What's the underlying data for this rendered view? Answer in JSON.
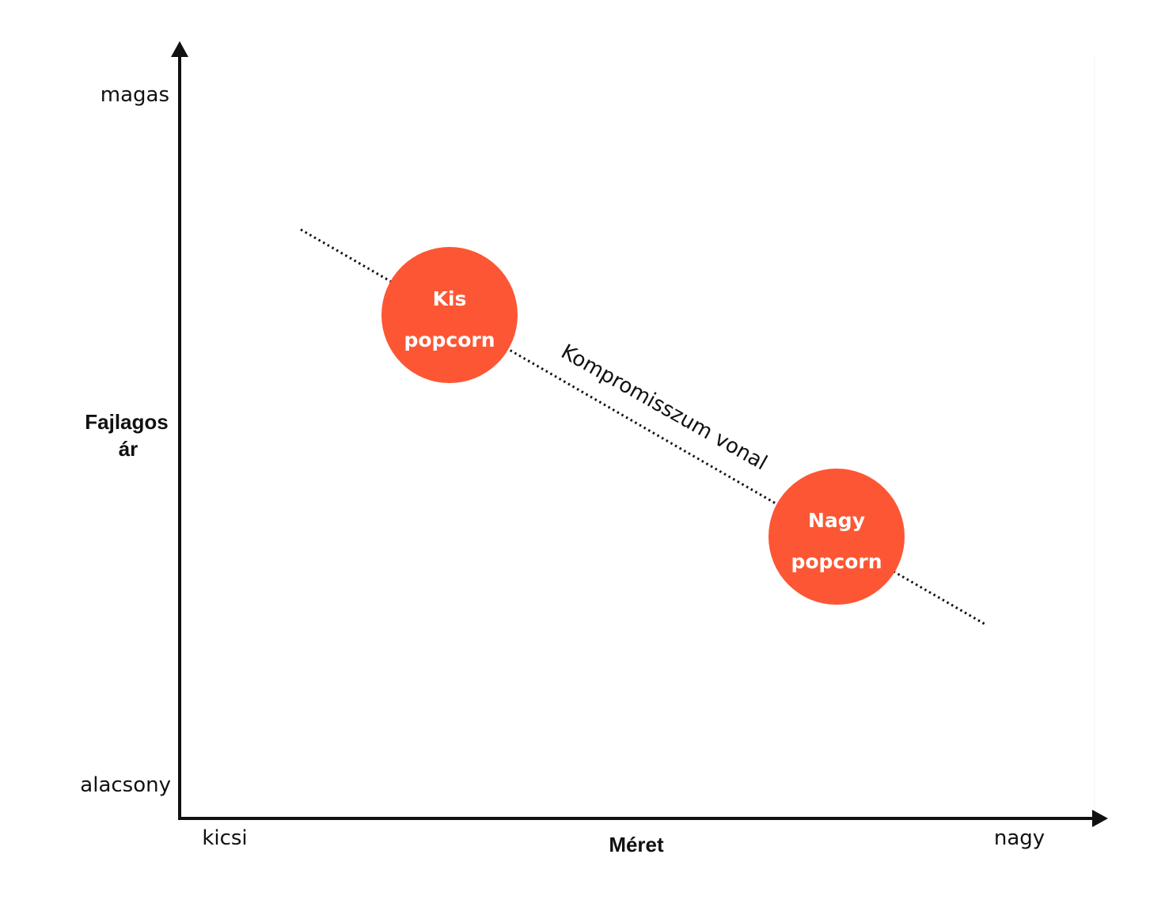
{
  "colors": {
    "axis": "#111111",
    "bubble": "#fd5634",
    "bubble_text": "#ffffff",
    "background": "#ffffff"
  },
  "y_axis": {
    "title_line1": "Fajlagos",
    "title_line2": "ár",
    "high_label": "magas",
    "low_label": "alacsony"
  },
  "x_axis": {
    "title": "Méret",
    "low_label": "kicsi",
    "high_label": "nagy"
  },
  "tradeoff_line": {
    "label": "Kompromisszum vonal",
    "style": "dotted"
  },
  "items": [
    {
      "line1": "Kis",
      "line2": "popcorn"
    },
    {
      "line1": "Nagy",
      "line2": "popcorn"
    }
  ]
}
